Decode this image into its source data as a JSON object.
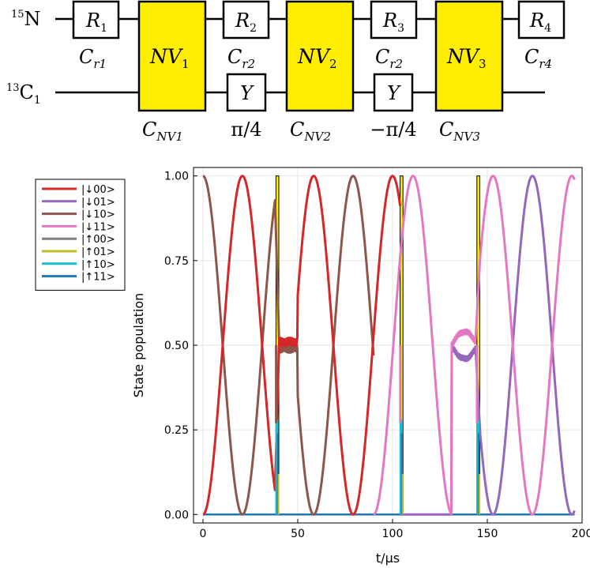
{
  "circuit": {
    "wires": [
      {
        "label_sup": "15",
        "label_main": "N",
        "label_sub": ""
      },
      {
        "label_sup": "13",
        "label_main": "C",
        "label_sub": "1"
      }
    ],
    "gates": [
      {
        "id": "R1",
        "type": "box",
        "wire": 0,
        "text": "R",
        "sub": "1",
        "caption": "C",
        "caption_sub": "r1"
      },
      {
        "id": "NV1",
        "type": "nv",
        "text": "NV",
        "sub": "1",
        "caption": "C",
        "caption_sub": "NV1",
        "color": "#ffee00"
      },
      {
        "id": "R2",
        "type": "box",
        "wire": 0,
        "text": "R",
        "sub": "2",
        "caption": "C",
        "caption_sub": "r2"
      },
      {
        "id": "Y1",
        "type": "box",
        "wire": 1,
        "text": "Y",
        "sub": "",
        "caption": "π/4",
        "caption_sub": ""
      },
      {
        "id": "NV2",
        "type": "nv",
        "text": "NV",
        "sub": "2",
        "caption": "C",
        "caption_sub": "NV2",
        "color": "#ffee00"
      },
      {
        "id": "R3",
        "type": "box",
        "wire": 0,
        "text": "R",
        "sub": "3",
        "caption": "C",
        "caption_sub": "r2"
      },
      {
        "id": "Y2",
        "type": "box",
        "wire": 1,
        "text": "Y",
        "sub": "",
        "caption": "−π/4",
        "caption_sub": ""
      },
      {
        "id": "NV3",
        "type": "nv",
        "text": "NV",
        "sub": "3",
        "caption": "C",
        "caption_sub": "NV3",
        "color": "#ffee00"
      },
      {
        "id": "R4",
        "type": "box",
        "wire": 0,
        "text": "R",
        "sub": "4",
        "caption": "C",
        "caption_sub": "r4"
      }
    ]
  },
  "chart_data": {
    "type": "line",
    "title": "",
    "xlabel": "t/μs",
    "ylabel": "State population",
    "xlim": [
      -5,
      200
    ],
    "ylim": [
      -0.025,
      1.025
    ],
    "xticks": [
      0,
      50,
      100,
      150,
      200
    ],
    "xtick_labels": [
      "0",
      "50",
      "100",
      "150",
      "200"
    ],
    "yticks": [
      0,
      0.25,
      0.5,
      0.75,
      1.0
    ],
    "ytick_labels": [
      "0.00",
      "0.25",
      "0.50",
      "0.75",
      "1.00"
    ],
    "grid": true,
    "legend_position": "outside-left-top",
    "series": [
      {
        "name": "|↓00>",
        "color": "#d62728"
      },
      {
        "name": "|↓01>",
        "color": "#9467bd"
      },
      {
        "name": "|↓10>",
        "color": "#8c564b"
      },
      {
        "name": "|↓11>",
        "color": "#e377c2"
      },
      {
        "name": "|↑00>",
        "color": "#7f7f7f"
      },
      {
        "name": "|↑01>",
        "color": "#bcbd22"
      },
      {
        "name": "|↑10>",
        "color": "#17becf"
      },
      {
        "name": "|↑11>",
        "color": "#1f77b4"
      }
    ],
    "segments": [
      {
        "t0": 0,
        "t1": 38,
        "rise": "↓00",
        "fall": "↓10"
      },
      {
        "t0": 38,
        "t1": 40,
        "pulse": 1
      },
      {
        "t0": 40,
        "t1": 50,
        "plateau": [
          "↓00",
          "↓10"
        ]
      },
      {
        "t0": 50,
        "t1": 104,
        "rise": "↓00",
        "fall": "↓10",
        "period": 40,
        "note": "↓10 decays to 0 at 90, then ↓11 rises"
      },
      {
        "t0": 104,
        "t1": 106,
        "pulse": 2
      },
      {
        "t0": 131,
        "t1": 146,
        "plateau": [
          "↓11",
          "↓01"
        ]
      },
      {
        "t0": 144,
        "t1": 146,
        "pulse": 3
      },
      {
        "t0": 146,
        "t1": 197,
        "rise": "↓01",
        "fall": "↓11"
      }
    ],
    "pulses": [
      {
        "t_start": 38.5,
        "t_end": 40.0,
        "color": "#ffee00"
      },
      {
        "t_start": 104.0,
        "t_end": 105.5,
        "color": "#ffee00"
      },
      {
        "t_start": 144.5,
        "t_end": 146.0,
        "color": "#ffee00"
      }
    ],
    "peaks_red_down00": [
      25,
      66,
      90
    ],
    "peaks_pink_down11": [
      119,
      161,
      195
    ],
    "peaks_purple_down01": [
      197
    ]
  }
}
